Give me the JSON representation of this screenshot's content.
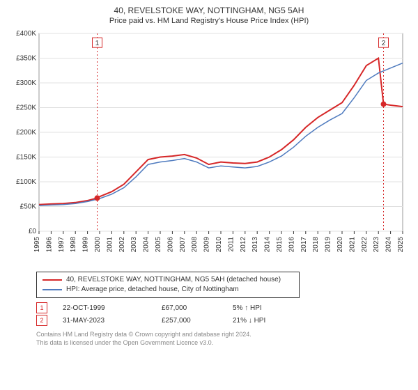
{
  "title": "40, REVELSTOKE WAY, NOTTINGHAM, NG5 5AH",
  "subtitle": "Price paid vs. HM Land Registry's House Price Index (HPI)",
  "chart": {
    "type": "line",
    "background_color": "#ffffff",
    "grid_color": "#e0e0e0",
    "ylabel_prefix": "£",
    "ylim": [
      0,
      400000
    ],
    "ytick_step": 50000,
    "yticks": [
      "£0",
      "£50K",
      "£100K",
      "£150K",
      "£200K",
      "£250K",
      "£300K",
      "£350K",
      "£400K"
    ],
    "xlim": [
      1995,
      2025
    ],
    "xticks": [
      1995,
      1996,
      1997,
      1998,
      1999,
      2000,
      2001,
      2002,
      2003,
      2004,
      2005,
      2006,
      2007,
      2008,
      2009,
      2010,
      2011,
      2012,
      2013,
      2014,
      2015,
      2016,
      2017,
      2018,
      2019,
      2020,
      2021,
      2022,
      2023,
      2024,
      2025
    ],
    "series": [
      {
        "name": "40, REVELSTOKE WAY, NOTTINGHAM, NG5 5AH (detached house)",
        "color": "#d62728",
        "line_width": 2,
        "data": [
          [
            1995,
            54000
          ],
          [
            1996,
            55000
          ],
          [
            1997,
            56000
          ],
          [
            1998,
            58000
          ],
          [
            1999,
            62000
          ],
          [
            1999.8,
            67000
          ],
          [
            2000,
            70000
          ],
          [
            2001,
            80000
          ],
          [
            2002,
            95000
          ],
          [
            2003,
            120000
          ],
          [
            2004,
            145000
          ],
          [
            2005,
            150000
          ],
          [
            2006,
            152000
          ],
          [
            2007,
            155000
          ],
          [
            2008,
            148000
          ],
          [
            2009,
            135000
          ],
          [
            2010,
            140000
          ],
          [
            2011,
            138000
          ],
          [
            2012,
            137000
          ],
          [
            2013,
            140000
          ],
          [
            2014,
            150000
          ],
          [
            2015,
            165000
          ],
          [
            2016,
            185000
          ],
          [
            2017,
            210000
          ],
          [
            2018,
            230000
          ],
          [
            2019,
            245000
          ],
          [
            2020,
            260000
          ],
          [
            2021,
            295000
          ],
          [
            2022,
            335000
          ],
          [
            2023,
            350000
          ],
          [
            2023.42,
            257000
          ],
          [
            2024,
            255000
          ],
          [
            2025,
            252000
          ]
        ]
      },
      {
        "name": "HPI: Average price, detached house, City of Nottingham",
        "color": "#4f7bbf",
        "line_width": 1.5,
        "data": [
          [
            1995,
            52000
          ],
          [
            1996,
            53000
          ],
          [
            1997,
            54000
          ],
          [
            1998,
            56000
          ],
          [
            1999,
            60000
          ],
          [
            2000,
            66000
          ],
          [
            2001,
            75000
          ],
          [
            2002,
            88000
          ],
          [
            2003,
            110000
          ],
          [
            2004,
            135000
          ],
          [
            2005,
            140000
          ],
          [
            2006,
            143000
          ],
          [
            2007,
            147000
          ],
          [
            2008,
            140000
          ],
          [
            2009,
            128000
          ],
          [
            2010,
            132000
          ],
          [
            2011,
            130000
          ],
          [
            2012,
            128000
          ],
          [
            2013,
            131000
          ],
          [
            2014,
            140000
          ],
          [
            2015,
            152000
          ],
          [
            2016,
            170000
          ],
          [
            2017,
            192000
          ],
          [
            2018,
            210000
          ],
          [
            2019,
            225000
          ],
          [
            2020,
            238000
          ],
          [
            2021,
            270000
          ],
          [
            2022,
            305000
          ],
          [
            2023,
            320000
          ],
          [
            2024,
            330000
          ],
          [
            2025,
            340000
          ]
        ]
      }
    ],
    "markers": [
      {
        "n": 1,
        "label": "1",
        "x": 1999.8,
        "y_top": 380000,
        "dot_y": 67000,
        "color": "#d62728"
      },
      {
        "n": 2,
        "label": "2",
        "x": 2023.42,
        "y_top": 380000,
        "dot_y": 257000,
        "color": "#d62728"
      }
    ],
    "marker_line_color": "#d62728",
    "marker_dash": "2,3"
  },
  "legend": [
    {
      "label": "40, REVELSTOKE WAY, NOTTINGHAM, NG5 5AH (detached house)",
      "color": "#d62728"
    },
    {
      "label": "HPI: Average price, detached house, City of Nottingham",
      "color": "#4f7bbf"
    }
  ],
  "events": [
    {
      "n": "1",
      "color": "#d62728",
      "date": "22-OCT-1999",
      "price": "£67,000",
      "hpi": "5% ↑ HPI"
    },
    {
      "n": "2",
      "color": "#d62728",
      "date": "31-MAY-2023",
      "price": "£257,000",
      "hpi": "21% ↓ HPI"
    }
  ],
  "footer": [
    "Contains HM Land Registry data © Crown copyright and database right 2024.",
    "This data is licensed under the Open Government Licence v3.0."
  ]
}
